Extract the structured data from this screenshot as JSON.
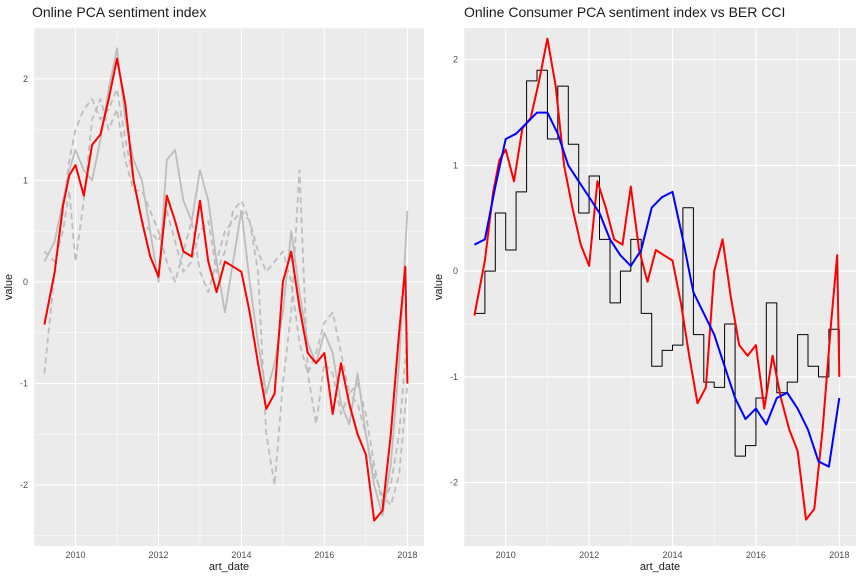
{
  "chart_data": [
    {
      "type": "line",
      "title": "Online PCA sentiment index",
      "xlabel": "art_date",
      "ylabel": "value",
      "xlim": [
        2009.0,
        2018.4
      ],
      "ylim": [
        -2.6,
        2.5
      ],
      "x_ticks": [
        2010,
        2012,
        2014,
        2016,
        2018
      ],
      "y_ticks": [
        -2,
        -1,
        0,
        1,
        2
      ],
      "grid": true,
      "legend": "none",
      "colors": {
        "panel_bg": "#ebebeb",
        "grid": "#ffffff",
        "main": "#ff0000",
        "components": "#bdbdbd"
      },
      "series": [
        {
          "style": "solid",
          "color": "#bdbdbd",
          "x": [
            2009.25,
            2009.5,
            2009.7,
            2009.85,
            2010.0,
            2010.2,
            2010.4,
            2010.6,
            2010.8,
            2011.0,
            2011.2,
            2011.4,
            2011.6,
            2011.8,
            2012.0,
            2012.2,
            2012.4,
            2012.6,
            2012.8,
            2013.0,
            2013.2,
            2013.4,
            2013.6,
            2013.8,
            2014.0,
            2014.2,
            2014.4,
            2014.6,
            2014.8,
            2015.0,
            2015.2,
            2015.4,
            2015.6,
            2015.8,
            2016.0,
            2016.2,
            2016.4,
            2016.6,
            2016.8,
            2017.0,
            2017.2,
            2017.4,
            2017.6,
            2017.8,
            2018.0
          ],
          "y": [
            0.2,
            0.4,
            0.8,
            1.1,
            1.3,
            1.1,
            1.0,
            1.4,
            1.9,
            2.3,
            1.6,
            1.2,
            1.0,
            0.5,
            0.0,
            1.2,
            1.3,
            0.8,
            0.6,
            1.1,
            0.8,
            0.2,
            -0.3,
            0.2,
            0.7,
            0.0,
            -0.6,
            -1.1,
            -0.8,
            -0.3,
            0.5,
            -0.1,
            -0.6,
            -0.8,
            -0.5,
            -0.7,
            -1.2,
            -1.4,
            -0.9,
            -1.5,
            -2.0,
            -2.3,
            -1.8,
            -0.8,
            0.7
          ]
        },
        {
          "style": "dashed",
          "color": "#bdbdbd",
          "x": [
            2009.25,
            2009.5,
            2009.7,
            2009.85,
            2010.0,
            2010.2,
            2010.4,
            2010.6,
            2010.8,
            2011.0,
            2011.2,
            2011.4,
            2011.6,
            2011.8,
            2012.0,
            2012.2,
            2012.4,
            2012.6,
            2012.8,
            2013.0,
            2013.2,
            2013.4,
            2013.6,
            2013.8,
            2014.0,
            2014.2,
            2014.4,
            2014.6,
            2014.8,
            2015.0,
            2015.2,
            2015.4,
            2015.6,
            2015.8,
            2016.0,
            2016.2,
            2016.4,
            2016.6,
            2016.8,
            2017.0,
            2017.2,
            2017.4,
            2017.6,
            2017.8,
            2018.0
          ],
          "y": [
            -0.9,
            0.1,
            0.7,
            1.2,
            1.5,
            1.7,
            1.8,
            1.6,
            1.7,
            1.9,
            1.4,
            1.0,
            0.6,
            0.5,
            0.4,
            0.7,
            0.4,
            0.1,
            0.2,
            0.5,
            0.6,
            0.1,
            0.3,
            0.7,
            0.8,
            0.6,
            0.1,
            -1.5,
            -2.0,
            -1.0,
            -0.3,
            1.1,
            -0.9,
            -1.4,
            -0.8,
            -0.9,
            -1.3,
            -1.1,
            -1.2,
            -1.5,
            -1.9,
            -2.1,
            -2.2,
            -1.9,
            -1.0
          ]
        },
        {
          "style": "dashed",
          "color": "#bdbdbd",
          "x": [
            2009.25,
            2009.5,
            2009.7,
            2009.85,
            2010.0,
            2010.2,
            2010.4,
            2010.6,
            2010.8,
            2011.0,
            2011.2,
            2011.4,
            2011.6,
            2011.8,
            2012.0,
            2012.2,
            2012.4,
            2012.6,
            2012.8,
            2013.0,
            2013.2,
            2013.4,
            2013.6,
            2013.8,
            2014.0,
            2014.2,
            2014.4,
            2014.6,
            2014.8,
            2015.0,
            2015.2,
            2015.4,
            2015.6,
            2015.8,
            2016.0,
            2016.2,
            2016.4,
            2016.6,
            2016.8,
            2017.0,
            2017.2,
            2017.4,
            2017.6,
            2017.8,
            2018.0
          ],
          "y": [
            0.3,
            0.2,
            0.5,
            0.9,
            0.2,
            0.8,
            1.6,
            1.8,
            1.5,
            1.7,
            1.2,
            0.9,
            0.9,
            0.7,
            0.5,
            0.2,
            0.0,
            0.3,
            0.6,
            0.1,
            -0.1,
            0.2,
            0.5,
            0.6,
            0.7,
            0.6,
            0.3,
            0.1,
            0.2,
            0.3,
            0.0,
            -0.6,
            -0.9,
            -0.7,
            -0.4,
            -0.3,
            -0.7,
            -1.1,
            -1.0,
            -1.3,
            -1.8,
            -2.2,
            -2.0,
            -1.5,
            -0.5
          ]
        },
        {
          "style": "solid",
          "color": "#ff0000",
          "x": [
            2009.25,
            2009.5,
            2009.7,
            2009.85,
            2010.0,
            2010.2,
            2010.4,
            2010.6,
            2010.8,
            2011.0,
            2011.2,
            2011.4,
            2011.6,
            2011.8,
            2012.0,
            2012.2,
            2012.4,
            2012.6,
            2012.8,
            2013.0,
            2013.2,
            2013.4,
            2013.6,
            2013.8,
            2014.0,
            2014.2,
            2014.4,
            2014.6,
            2014.8,
            2015.0,
            2015.2,
            2015.4,
            2015.6,
            2015.8,
            2016.0,
            2016.2,
            2016.4,
            2016.6,
            2016.8,
            2017.0,
            2017.2,
            2017.4,
            2017.6,
            2017.8,
            2017.95,
            2018.0
          ],
          "y": [
            -0.42,
            0.1,
            0.75,
            1.05,
            1.15,
            0.85,
            1.35,
            1.45,
            1.8,
            2.2,
            1.75,
            1.0,
            0.6,
            0.25,
            0.05,
            0.85,
            0.6,
            0.3,
            0.25,
            0.8,
            0.2,
            -0.1,
            0.2,
            0.15,
            0.1,
            -0.3,
            -0.8,
            -1.25,
            -1.1,
            0.0,
            0.3,
            -0.25,
            -0.7,
            -0.8,
            -0.7,
            -1.3,
            -0.8,
            -1.2,
            -1.5,
            -1.7,
            -2.35,
            -2.25,
            -1.5,
            -0.5,
            0.15,
            -1.0
          ]
        }
      ]
    },
    {
      "type": "line",
      "title": "Online Consumer PCA sentiment index vs BER CCI",
      "xlabel": "art_date",
      "ylabel": "value",
      "xlim": [
        2009.0,
        2018.4
      ],
      "ylim": [
        -2.6,
        2.3
      ],
      "x_ticks": [
        2010,
        2012,
        2014,
        2016,
        2018
      ],
      "y_ticks": [
        -2,
        -1,
        0,
        1,
        2
      ],
      "grid": true,
      "legend": "none",
      "colors": {
        "panel_bg": "#ebebeb",
        "grid": "#ffffff",
        "ccii": "#000000",
        "pca": "#ff0000",
        "smooth": "#0000ff"
      },
      "series": [
        {
          "style": "step",
          "color": "#000000",
          "x": [
            2009.25,
            2009.5,
            2009.75,
            2010.0,
            2010.25,
            2010.5,
            2010.75,
            2011.0,
            2011.25,
            2011.5,
            2011.75,
            2012.0,
            2012.25,
            2012.5,
            2012.75,
            2013.0,
            2013.25,
            2013.5,
            2013.75,
            2014.0,
            2014.25,
            2014.5,
            2014.75,
            2015.0,
            2015.25,
            2015.5,
            2015.75,
            2016.0,
            2016.25,
            2016.5,
            2016.75,
            2017.0,
            2017.25,
            2017.5,
            2017.75,
            2018.0
          ],
          "y": [
            -0.4,
            0.0,
            0.55,
            0.2,
            0.75,
            1.8,
            1.9,
            1.25,
            1.75,
            1.2,
            0.55,
            0.9,
            0.3,
            -0.3,
            0.0,
            0.3,
            -0.4,
            -0.9,
            -0.75,
            -0.7,
            0.6,
            -0.6,
            -1.05,
            -1.1,
            -0.5,
            -1.75,
            -1.65,
            -1.2,
            -0.3,
            -1.15,
            -1.05,
            -0.6,
            -0.9,
            -1.0,
            -0.55,
            -1.0
          ]
        },
        {
          "style": "solid",
          "color": "#ff0000",
          "x": [
            2009.25,
            2009.5,
            2009.7,
            2009.85,
            2010.0,
            2010.2,
            2010.4,
            2010.6,
            2010.8,
            2011.0,
            2011.2,
            2011.4,
            2011.6,
            2011.8,
            2012.0,
            2012.2,
            2012.4,
            2012.6,
            2012.8,
            2013.0,
            2013.2,
            2013.4,
            2013.6,
            2013.8,
            2014.0,
            2014.2,
            2014.4,
            2014.6,
            2014.8,
            2015.0,
            2015.2,
            2015.4,
            2015.6,
            2015.8,
            2016.0,
            2016.2,
            2016.4,
            2016.6,
            2016.8,
            2017.0,
            2017.2,
            2017.4,
            2017.6,
            2017.8,
            2017.95,
            2018.0
          ],
          "y": [
            -0.42,
            0.1,
            0.75,
            1.05,
            1.15,
            0.85,
            1.35,
            1.45,
            1.8,
            2.2,
            1.75,
            1.0,
            0.6,
            0.25,
            0.05,
            0.85,
            0.6,
            0.3,
            0.25,
            0.8,
            0.2,
            -0.1,
            0.2,
            0.15,
            0.1,
            -0.3,
            -0.8,
            -1.25,
            -1.1,
            0.0,
            0.3,
            -0.25,
            -0.7,
            -0.8,
            -0.7,
            -1.3,
            -0.8,
            -1.2,
            -1.5,
            -1.7,
            -2.35,
            -2.25,
            -1.5,
            -0.5,
            0.15,
            -1.0
          ]
        },
        {
          "style": "solid",
          "color": "#0000ff",
          "x": [
            2009.25,
            2009.5,
            2009.75,
            2010.0,
            2010.25,
            2010.5,
            2010.75,
            2011.0,
            2011.25,
            2011.5,
            2011.75,
            2012.0,
            2012.25,
            2012.5,
            2012.75,
            2013.0,
            2013.25,
            2013.5,
            2013.75,
            2014.0,
            2014.25,
            2014.5,
            2014.75,
            2015.0,
            2015.25,
            2015.5,
            2015.75,
            2016.0,
            2016.25,
            2016.5,
            2016.75,
            2017.0,
            2017.25,
            2017.5,
            2017.75,
            2018.0
          ],
          "y": [
            0.25,
            0.3,
            0.8,
            1.25,
            1.3,
            1.4,
            1.5,
            1.5,
            1.3,
            1.0,
            0.85,
            0.7,
            0.55,
            0.3,
            0.15,
            0.05,
            0.2,
            0.6,
            0.7,
            0.75,
            0.3,
            -0.2,
            -0.4,
            -0.6,
            -0.9,
            -1.2,
            -1.4,
            -1.3,
            -1.45,
            -1.2,
            -1.15,
            -1.3,
            -1.5,
            -1.8,
            -1.85,
            -1.2
          ]
        }
      ]
    }
  ]
}
